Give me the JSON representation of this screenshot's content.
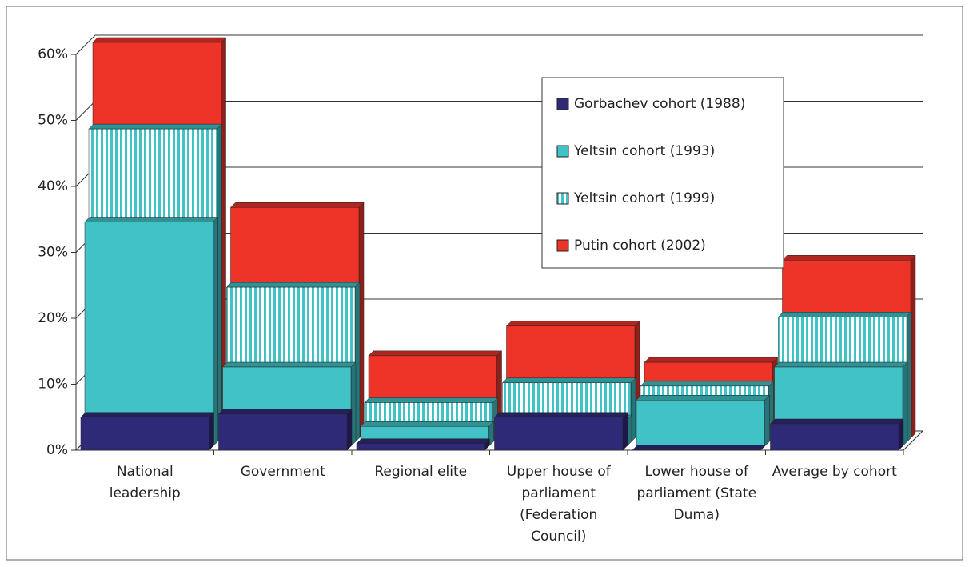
{
  "chart_data": {
    "type": "bar",
    "categories": [
      "National leadership",
      "Government",
      "Regional elite",
      "Upper house of parliament (Federation Council)",
      "Lower house of parliament (State Duma)",
      "Average by cohort"
    ],
    "series": [
      {
        "name": "Gorbachev cohort (1988)",
        "color": "#2e2a78",
        "values": [
          5,
          5.5,
          1,
          5,
          0,
          4
        ]
      },
      {
        "name": "Yeltsin cohort (1993)",
        "color": "#40c2c6",
        "values": [
          34,
          12,
          3,
          4,
          7,
          12
        ]
      },
      {
        "name": "Yeltsin cohort (1999)",
        "color": "#40c2c6",
        "pattern": "vertical-stripes",
        "values": [
          47.5,
          23.5,
          6,
          9,
          8.5,
          19
        ]
      },
      {
        "name": "Putin cohort (2002)",
        "color": "#ee3329",
        "values": [
          60,
          35,
          12.5,
          17,
          11.5,
          27
        ]
      }
    ],
    "ylim": [
      0,
      60
    ],
    "yticks": [
      {
        "value": 0,
        "label": "0%"
      },
      {
        "value": 10,
        "label": "10%"
      },
      {
        "value": 20,
        "label": "20%"
      },
      {
        "value": 30,
        "label": "30%"
      },
      {
        "value": 40,
        "label": "40%"
      },
      {
        "value": 50,
        "label": "50%"
      },
      {
        "value": 60,
        "label": "60%"
      }
    ],
    "grid": true,
    "legend": "top-right"
  }
}
